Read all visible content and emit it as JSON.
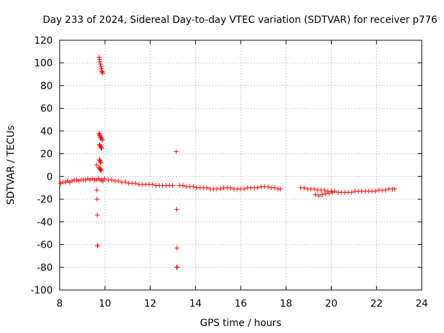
{
  "chart_data": {
    "type": "scatter",
    "title": "Day 233 of 2024, Sidereal Day-to-day VTEC variation (SDTVAR) for receiver p776",
    "xlabel": "GPS time / hours",
    "ylabel": "SDTVAR / TECUs",
    "xlim": [
      8,
      24
    ],
    "ylim": [
      -100,
      120
    ],
    "xticks": [
      8,
      10,
      12,
      14,
      16,
      18,
      20,
      22,
      24
    ],
    "yticks": [
      -100,
      -80,
      -60,
      -40,
      -20,
      0,
      20,
      40,
      60,
      80,
      100,
      120
    ],
    "grid": true,
    "marker": "+",
    "color": "#ff0000",
    "series": [
      {
        "name": "SDTVAR",
        "x": [
          8.05,
          8.15,
          8.25,
          8.35,
          8.45,
          8.55,
          8.65,
          8.75,
          8.85,
          8.95,
          9.05,
          9.15,
          9.25,
          9.35,
          9.45,
          9.55,
          9.62,
          9.7,
          9.78,
          9.85,
          9.92,
          9.98,
          9.74,
          9.76,
          9.78,
          9.8,
          9.82,
          9.84,
          9.86,
          9.88,
          9.9,
          9.74,
          9.76,
          9.78,
          9.8,
          9.82,
          9.84,
          9.86,
          9.88,
          9.76,
          9.78,
          9.8,
          9.82,
          9.84,
          9.86,
          9.76,
          9.78,
          9.8,
          9.82,
          9.74,
          9.76,
          9.78,
          9.8,
          9.82,
          9.84,
          9.63,
          9.64,
          9.65,
          9.66,
          9.67,
          9.68,
          10.15,
          10.3,
          10.45,
          10.6,
          10.75,
          10.9,
          11.05,
          11.2,
          11.35,
          11.5,
          11.65,
          11.8,
          11.95,
          12.1,
          12.25,
          12.4,
          12.55,
          12.7,
          12.85,
          12.98,
          13.15,
          13.17,
          13.18,
          13.2,
          13.17,
          13.3,
          13.45,
          13.6,
          13.75,
          13.9,
          14.05,
          14.2,
          14.35,
          14.5,
          14.65,
          14.8,
          14.95,
          15.1,
          15.25,
          15.4,
          15.55,
          15.7,
          15.85,
          16.0,
          16.15,
          16.3,
          16.45,
          16.6,
          16.75,
          16.9,
          17.05,
          17.2,
          17.35,
          17.5,
          17.65,
          17.75,
          18.65,
          18.8,
          18.95,
          19.1,
          19.25,
          19.4,
          19.55,
          19.7,
          19.85,
          20.0,
          20.15,
          20.3,
          20.45,
          20.6,
          20.75,
          20.9,
          21.05,
          21.2,
          21.35,
          21.5,
          21.65,
          21.8,
          21.95,
          22.1,
          22.25,
          22.4,
          22.55,
          22.7,
          22.8,
          19.3,
          19.45,
          19.6,
          19.75,
          19.9,
          20.05
        ],
        "y": [
          -6,
          -5,
          -5,
          -4,
          -5,
          -4,
          -3,
          -3,
          -4,
          -3,
          -3,
          -3,
          -2,
          -3,
          -2,
          -3,
          -3,
          -2,
          -3,
          -3,
          -4,
          -2,
          105,
          103,
          101,
          99,
          97,
          95,
          93,
          92,
          91,
          38,
          37,
          36,
          35,
          34,
          34,
          33,
          32,
          28,
          27,
          27,
          26,
          25,
          25,
          15,
          14,
          13,
          12,
          8,
          7,
          7,
          6,
          6,
          5,
          10,
          -12,
          -20,
          -34,
          -61,
          -61,
          -3,
          -3,
          -4,
          -4,
          -5,
          -5,
          -6,
          -6,
          -6,
          -7,
          -7,
          -7,
          -7,
          -7,
          -8,
          -8,
          -8,
          -8,
          -8,
          -8,
          22,
          -29,
          -63,
          -80,
          -80,
          -8,
          -8,
          -9,
          -9,
          -9,
          -10,
          -10,
          -10,
          -10,
          -11,
          -11,
          -11,
          -11,
          -10,
          -10,
          -10,
          -11,
          -11,
          -11,
          -11,
          -10,
          -10,
          -10,
          -10,
          -9,
          -9,
          -9,
          -10,
          -10,
          -11,
          -11,
          -10,
          -10,
          -11,
          -11,
          -11,
          -12,
          -12,
          -12,
          -13,
          -13,
          -13,
          -14,
          -14,
          -14,
          -14,
          -14,
          -13,
          -13,
          -13,
          -13,
          -13,
          -13,
          -13,
          -12,
          -12,
          -12,
          -11,
          -11,
          -11,
          -16,
          -17,
          -16,
          -15,
          -15,
          -14
        ]
      }
    ]
  }
}
